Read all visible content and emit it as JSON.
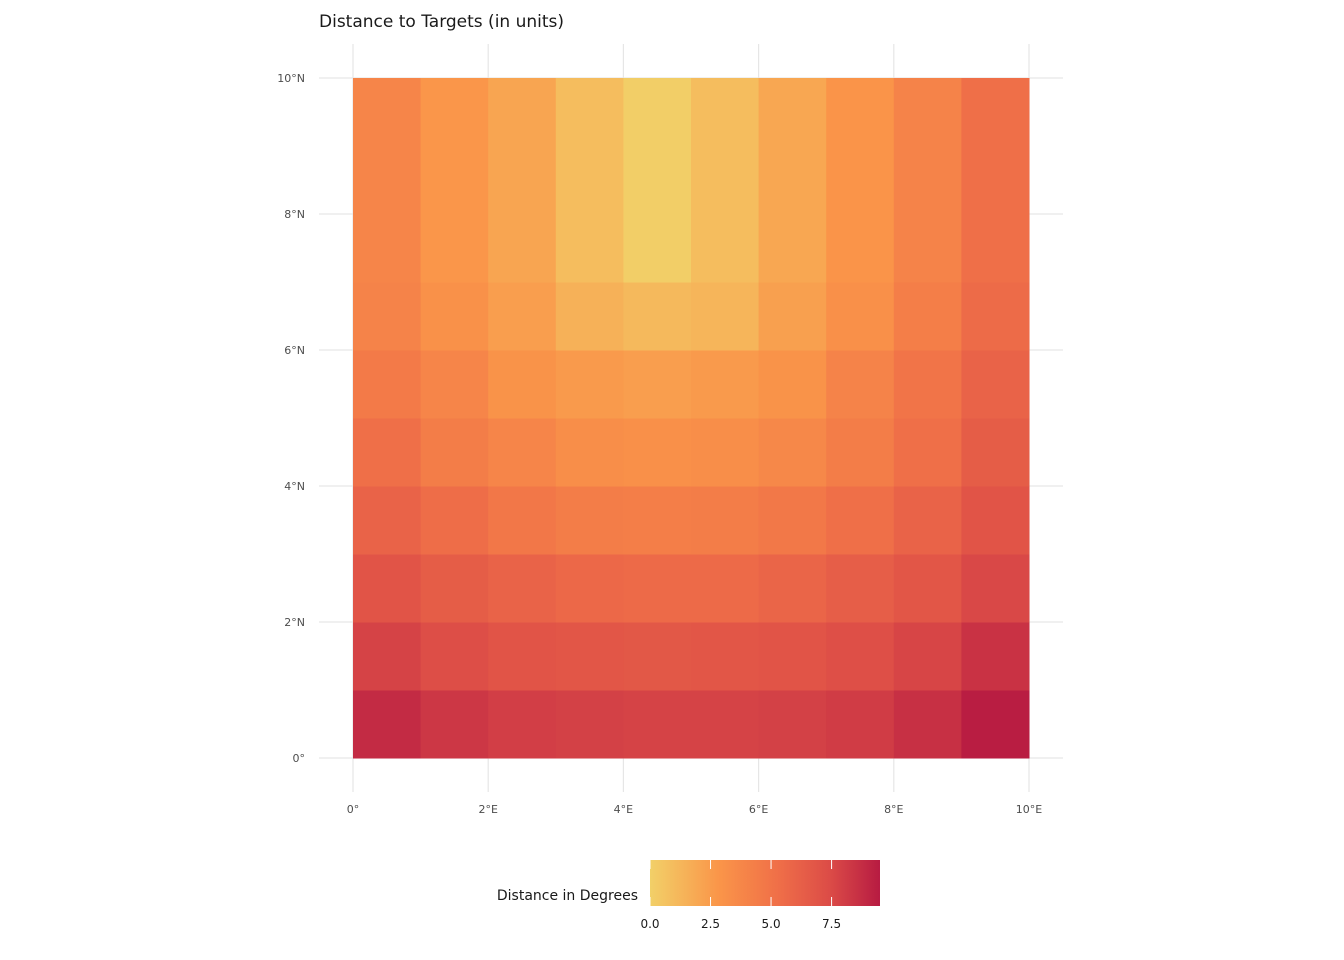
{
  "chart_data": {
    "type": "heatmap",
    "title": "Distance to Targets (in units)",
    "x_ticks": [
      {
        "value": 0,
        "label": "0°"
      },
      {
        "value": 2,
        "label": "2°E"
      },
      {
        "value": 4,
        "label": "4°E"
      },
      {
        "value": 6,
        "label": "6°E"
      },
      {
        "value": 8,
        "label": "8°E"
      },
      {
        "value": 10,
        "label": "10°E"
      }
    ],
    "y_ticks": [
      {
        "value": 0,
        "label": "0°"
      },
      {
        "value": 2,
        "label": "2°N"
      },
      {
        "value": 4,
        "label": "4°N"
      },
      {
        "value": 6,
        "label": "6°N"
      },
      {
        "value": 8,
        "label": "8°N"
      },
      {
        "value": 10,
        "label": "10°N"
      }
    ],
    "xlim": [
      -0.5,
      10.5
    ],
    "ylim": [
      -0.5,
      10.5
    ],
    "grid": true,
    "x_cell_edges": [
      0,
      1,
      2,
      3,
      4,
      5,
      6,
      7,
      8,
      9,
      10
    ],
    "y_cell_edges": [
      0,
      1,
      2,
      3,
      4,
      5,
      6,
      7,
      10
    ],
    "values_by_row_from_bottom": [
      [
        8.8,
        8.3,
        8.0,
        7.9,
        7.8,
        7.8,
        7.9,
        8.1,
        8.6,
        9.4
      ],
      [
        7.8,
        7.3,
        6.9,
        6.8,
        6.7,
        6.8,
        6.9,
        7.2,
        7.7,
        8.5
      ],
      [
        6.9,
        6.4,
        6.0,
        5.7,
        5.6,
        5.6,
        5.9,
        6.3,
        6.8,
        7.6
      ],
      [
        6.0,
        5.4,
        4.8,
        4.4,
        4.3,
        4.4,
        4.7,
        5.3,
        6.0,
        6.9
      ],
      [
        5.3,
        4.4,
        3.9,
        3.3,
        3.2,
        3.3,
        3.7,
        4.4,
        5.3,
        6.4
      ],
      [
        4.6,
        3.9,
        3.0,
        2.6,
        2.4,
        2.6,
        3.0,
        4.0,
        5.0,
        6.0
      ],
      [
        4.0,
        3.1,
        2.4,
        1.5,
        1.1,
        1.3,
        2.3,
        3.2,
        4.3,
        5.5
      ],
      [
        3.9,
        2.8,
        2.1,
        0.9,
        0.1,
        0.9,
        2.0,
        2.9,
        4.0,
        5.3
      ]
    ],
    "legend": {
      "title": "Distance in Degrees",
      "position": "bottom",
      "ticks": [
        {
          "value": 0,
          "label": "0.0"
        },
        {
          "value": 2.5,
          "label": "2.5"
        },
        {
          "value": 5,
          "label": "5.0"
        },
        {
          "value": 7.5,
          "label": "7.5"
        }
      ],
      "range": [
        0,
        9.5
      ]
    },
    "colors": {
      "low": "#f2d068",
      "mid_low": "#fa9549",
      "mid": "#f07048",
      "mid_high": "#dc4c47",
      "high": "#b71b42",
      "grid": "#e6e6e6"
    }
  }
}
